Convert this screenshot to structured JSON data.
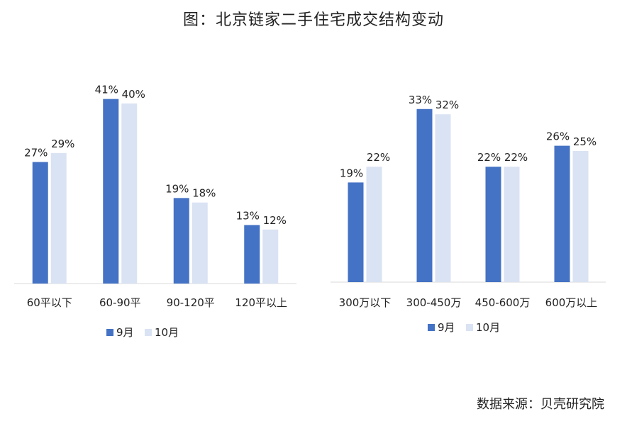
{
  "title": "图：北京链家二手住宅成交结构变动",
  "source": "数据来源：贝壳研究院",
  "colors": {
    "sep": "#4472C4",
    "oct": "#DAE3F3",
    "axis": "#D9D9D9"
  },
  "chart_data": [
    {
      "type": "bar",
      "categories": [
        "60平以下",
        "60-90平",
        "90-120平",
        "120平以上"
      ],
      "series": [
        {
          "name": "9月",
          "values": [
            27,
            41,
            19,
            13
          ],
          "labels": [
            "27%",
            "41%",
            "19%",
            "13%"
          ]
        },
        {
          "name": "10月",
          "values": [
            29,
            40,
            18,
            12
          ],
          "labels": [
            "29%",
            "40%",
            "18%",
            "12%"
          ]
        }
      ],
      "ylim": [
        0,
        45
      ],
      "grid": false,
      "legend": "bottom"
    },
    {
      "type": "bar",
      "categories": [
        "300万以下",
        "300-450万",
        "450-600万",
        "600万以上"
      ],
      "series": [
        {
          "name": "9月",
          "values": [
            19,
            33,
            22,
            26
          ],
          "labels": [
            "19%",
            "33%",
            "22%",
            "26%"
          ]
        },
        {
          "name": "10月",
          "values": [
            22,
            32,
            22,
            25
          ],
          "labels": [
            "22%",
            "32%",
            "22%",
            "25%"
          ]
        }
      ],
      "ylim": [
        0,
        45
      ],
      "grid": false,
      "legend": "bottom"
    }
  ]
}
